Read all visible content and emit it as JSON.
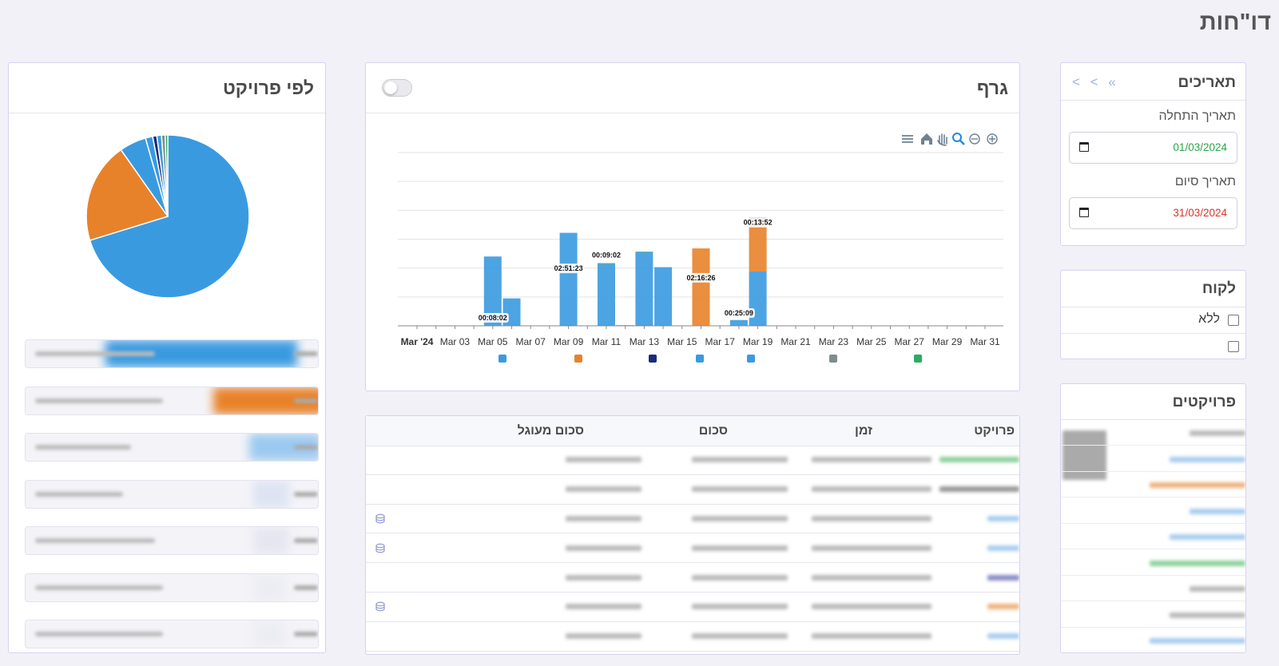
{
  "page_title": "דו\"חות",
  "dates": {
    "title": "תאריכים",
    "nav": "< < «",
    "start_label": "תאריך התחלה",
    "start_value": "01/03/2024",
    "start_color": "#2aa54a",
    "end_label": "תאריך סיום",
    "end_value": "31/03/2024",
    "end_color": "#d9342b"
  },
  "customer": {
    "title": "לקוח",
    "options": [
      "ללא",
      ""
    ]
  },
  "projects": {
    "title": "פרויקטים"
  },
  "graph": {
    "title": "גרף",
    "toggle_on": false,
    "toolbar_icons": [
      "zoom-in-icon",
      "zoom-out-icon",
      "zoom-select-icon",
      "pan-hand-icon",
      "home-icon",
      "menu-icon"
    ]
  },
  "by_project": {
    "title": "לפי פרויקט"
  },
  "table": {
    "headers": [
      "פרויקט",
      "זמן",
      "סכום",
      "סכום מעוגל"
    ]
  },
  "colors": {
    "blue": "#3a9ae0",
    "orange": "#e8822a",
    "navy": "#1c2a7e",
    "gray": "#7f8c8d",
    "green": "#27ae60"
  },
  "chart_data": {
    "type": "bar",
    "stacked": true,
    "x_tick_labels": [
      "Mar '24",
      "Mar 03",
      "Mar 05",
      "Mar 07",
      "Mar 09",
      "Mar 11",
      "Mar 13",
      "Mar 15",
      "Mar 17",
      "Mar 19",
      "Mar 21",
      "Mar 23",
      "Mar 25",
      "Mar 27",
      "Mar 29",
      "Mar 31"
    ],
    "dates": [
      "2024-03-05",
      "2024-03-06",
      "2024-03-09",
      "2024-03-11",
      "2024-03-12",
      "2024-03-13",
      "2024-03-14",
      "2024-03-16",
      "2024-03-18",
      "2024-03-19"
    ],
    "series": [
      {
        "color": "#3a9ae0",
        "values": [
          2.4,
          0.95,
          3.22,
          2.14,
          0,
          2.55,
          2.03,
          0,
          0.2,
          1.88
        ]
      },
      {
        "color": "#e8822a",
        "values": [
          0,
          0,
          0,
          0,
          0,
          0,
          0,
          2.68,
          0,
          1.8
        ]
      },
      {
        "color": "#27ae60",
        "values": [
          0,
          0,
          0,
          0.03,
          0.02,
          0.02,
          0,
          0,
          0,
          0
        ]
      },
      {
        "color": "#1c2a7e",
        "values": [
          0,
          0,
          0,
          0,
          0,
          0,
          0,
          0,
          0,
          0.06
        ]
      }
    ],
    "data_labels": [
      {
        "date": "2024-03-05",
        "text": "00:08:02"
      },
      {
        "date": "2024-03-09",
        "text": "02:51:23"
      },
      {
        "date": "2024-03-11",
        "text": "00:09:02"
      },
      {
        "date": "2024-03-16",
        "text": "02:16:26"
      },
      {
        "date": "2024-03-18",
        "text": "00:25:09"
      },
      {
        "date": "2024-03-19",
        "text": "00:13:52"
      }
    ],
    "legend_colors": [
      "#3a9ae0",
      "#e8822a",
      "#1c2a7e",
      "#3a9ae0",
      "#3a9ae0",
      "#7f8c8d",
      "#27ae60"
    ],
    "ylim": [
      0,
      6
    ],
    "grid": true
  },
  "pie_data": {
    "type": "pie",
    "values": [
      68.5,
      19.5,
      5.2,
      1.4,
      0.8,
      0.9,
      0.7,
      0.5
    ],
    "colors": [
      "#3a9ae0",
      "#e8822a",
      "#3a9ae0",
      "#3a9ae0",
      "#1c2a7e",
      "#3a9ae0",
      "#7f8c8d",
      "#27ae60"
    ]
  }
}
